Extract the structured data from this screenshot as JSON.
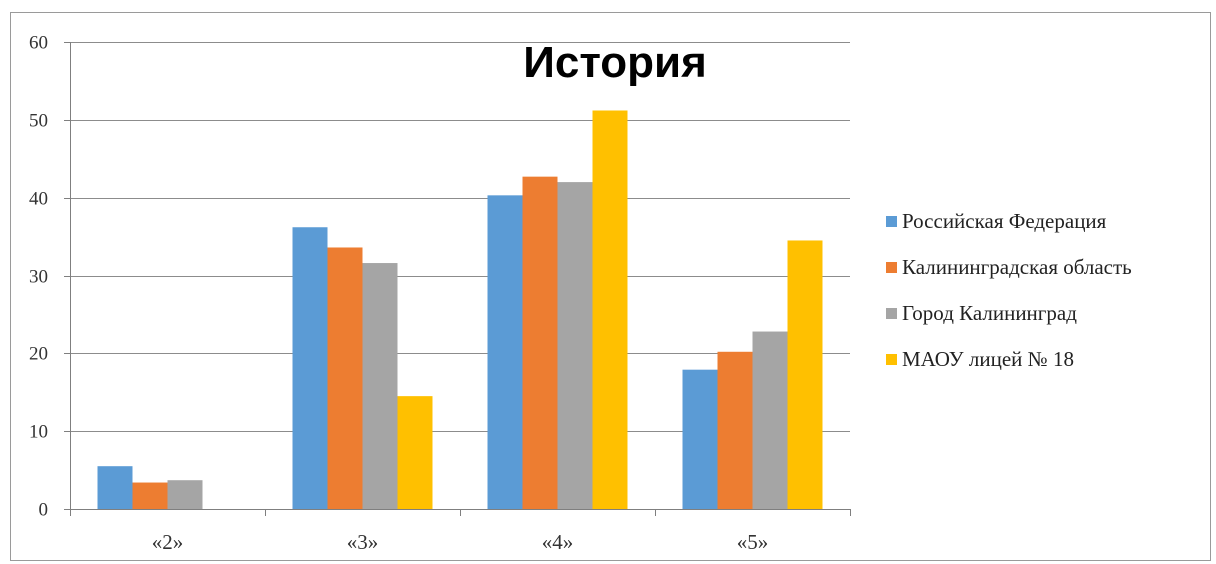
{
  "chart_data": {
    "type": "bar",
    "title": "История",
    "xlabel": "",
    "ylabel": "",
    "ylim": [
      0,
      60
    ],
    "yticks": [
      0,
      10,
      20,
      30,
      40,
      50,
      60
    ],
    "ytick_labels": [
      "0",
      "10",
      "20",
      "30",
      "40",
      "50",
      "60"
    ],
    "categories": [
      "«2»",
      "«3»",
      "«4»",
      "«5»"
    ],
    "grid": true,
    "legend_position": "right",
    "series": [
      {
        "name": "Российская Федерация",
        "color": "#5b9bd5",
        "values": [
          5.5,
          36.2,
          40.3,
          17.9
        ]
      },
      {
        "name": "Калининградская  область",
        "color": "#ed7d31",
        "values": [
          3.4,
          33.6,
          42.7,
          20.2
        ]
      },
      {
        "name": "Город Калининград",
        "color": "#a5a5a5",
        "values": [
          3.7,
          31.6,
          42.0,
          22.8
        ]
      },
      {
        "name": "МАОУ лицей № 18",
        "color": "#ffc000",
        "values": [
          0,
          14.5,
          51.2,
          34.5
        ]
      }
    ]
  }
}
